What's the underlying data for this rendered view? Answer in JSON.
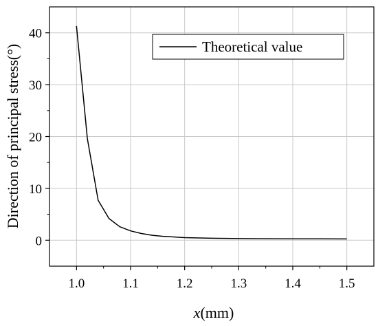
{
  "chart_data": {
    "type": "line",
    "title": "",
    "xlabel_var": "x",
    "xlabel_unit": "(mm)",
    "ylabel": "Direction of principal stress(°)",
    "xlim": [
      0.95,
      1.55
    ],
    "ylim": [
      -5,
      45
    ],
    "xticks": [
      1.0,
      1.1,
      1.2,
      1.3,
      1.4,
      1.5
    ],
    "xtick_labels": [
      "1.0",
      "1.1",
      "1.2",
      "1.3",
      "1.4",
      "1.5"
    ],
    "yticks": [
      0,
      10,
      20,
      30,
      40
    ],
    "ytick_labels": [
      "0",
      "10",
      "20",
      "30",
      "40"
    ],
    "grid": true,
    "legend_position": "top-right",
    "series": [
      {
        "name": "Theoretical value",
        "color": "#000000",
        "x": [
          1.0,
          1.02,
          1.04,
          1.06,
          1.08,
          1.1,
          1.12,
          1.14,
          1.16,
          1.2,
          1.25,
          1.3,
          1.35,
          1.4,
          1.45,
          1.5
        ],
        "y": [
          41.3,
          19.6,
          7.7,
          4.2,
          2.6,
          1.8,
          1.3,
          0.95,
          0.75,
          0.5,
          0.38,
          0.32,
          0.29,
          0.27,
          0.26,
          0.25
        ]
      }
    ]
  }
}
